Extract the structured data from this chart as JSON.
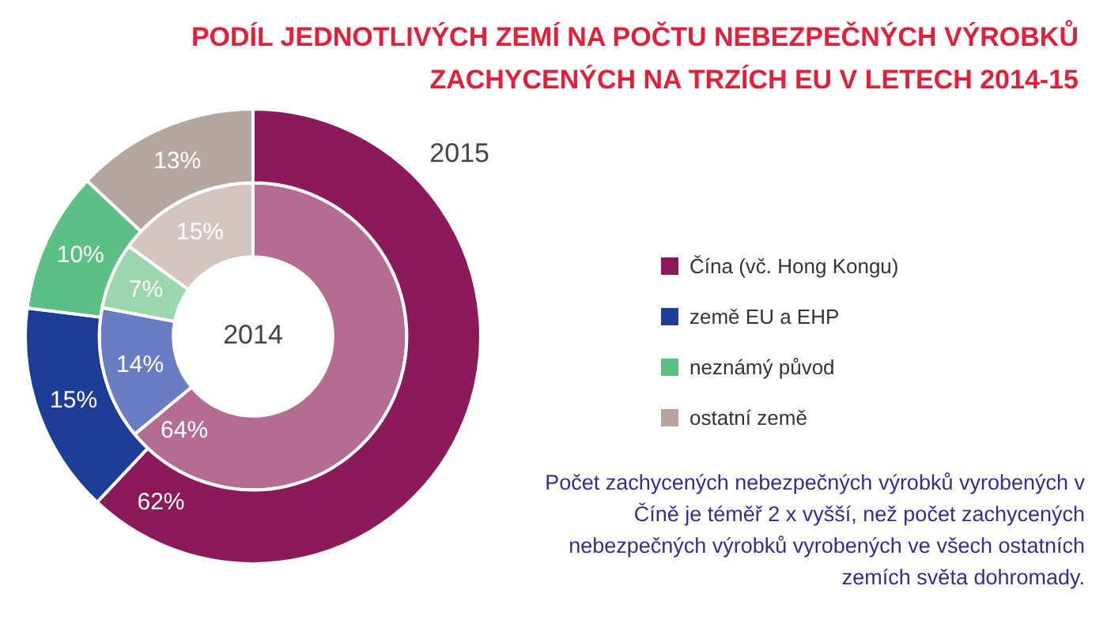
{
  "chart_data": {
    "type": "donut",
    "title": "PODÍL JEDNOTLIVÝCH ZEMÍ NA POČTU NEBEZPEČNÝCH VÝROBKŮ ZACHYCENÝCH NA TRZÍCH EU V LETECH  2014-15",
    "categories": [
      "Čína (vč. Hong Kongu)",
      "země EU a EHP",
      "neznámý původ",
      "ostatní země"
    ],
    "series": [
      {
        "name": "2015",
        "values": [
          62,
          15,
          10,
          13
        ],
        "value_labels": [
          "62%",
          "15%",
          "10%",
          "13%"
        ],
        "colors": [
          "#8c1a5b",
          "#1e3d97",
          "#5cbf85",
          "#b5a79f"
        ]
      },
      {
        "name": "2014",
        "values": [
          64,
          14,
          7,
          15
        ],
        "value_labels": [
          "64%",
          "14%",
          "7%",
          "15%"
        ],
        "colors": [
          "#b46d90",
          "#6a7cc3",
          "#9bd6ae",
          "#d3c6c0"
        ]
      }
    ],
    "legend": "right",
    "annotations": [
      "Počet zachycených nebezpečných výrobků vyrobených v Číně je téměř 2 x vyšší, než počet zachycených nebezpečných výrobků vyrobených ve všech ostatních zemích světa dohromady."
    ]
  }
}
